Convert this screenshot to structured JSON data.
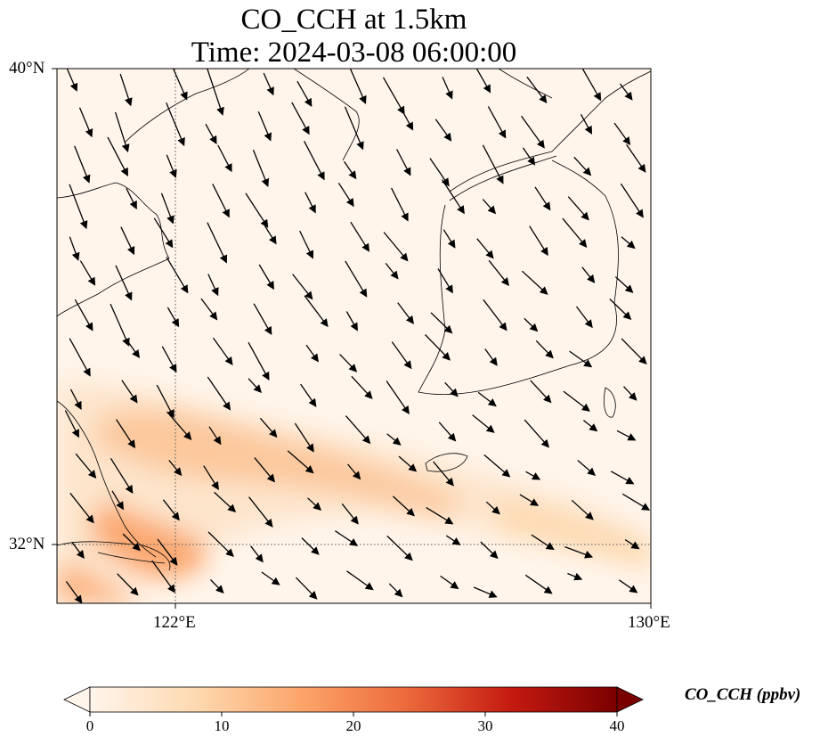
{
  "title": {
    "line1": "CO_CCH at 1.5km",
    "line2": "Time: 2024-03-08 06:00:00"
  },
  "map": {
    "extent": {
      "lon_min": 118.7,
      "lon_max": 130.0,
      "lat_min": 31.1,
      "lat_max": 40.0
    },
    "gridlines": {
      "lon": [
        122
      ],
      "lat": [
        32
      ],
      "style": "dotted"
    },
    "lat_labels": [
      "40°N",
      "32°N"
    ],
    "lon_labels": [
      "122°E",
      "130°E"
    ],
    "colors": {
      "coastline": "#000000",
      "arrow": "#000000",
      "background": "#fff5eb"
    }
  },
  "colorbar": {
    "label": "CO_CCH (ppbv)",
    "ticks": [
      "0",
      "10",
      "20",
      "30",
      "40"
    ],
    "range": [
      0,
      40
    ],
    "extend": "both",
    "colormap": "Oranges-Red",
    "colors": [
      "#fff5eb",
      "#fdd9b0",
      "#fca56a",
      "#ec6a3c",
      "#c41a10",
      "#7a0000"
    ]
  }
}
